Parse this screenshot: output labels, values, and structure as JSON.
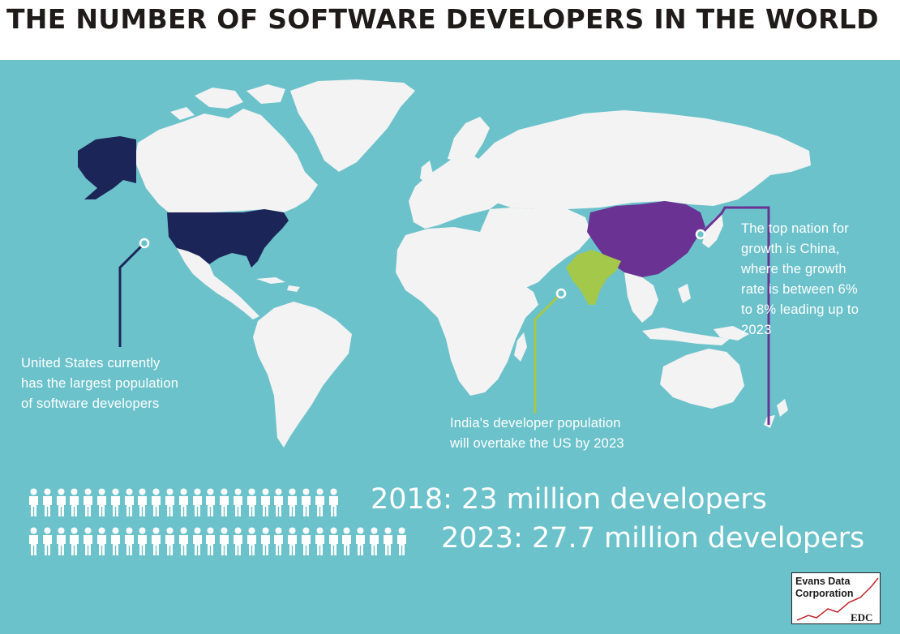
{
  "title": "THE NUMBER OF SOFTWARE DEVELOPERS IN THE WORLD",
  "colors": {
    "ocean": "#6cc2cb",
    "land": "#f3f3f3",
    "usa": "#1c2557",
    "china": "#6a3293",
    "india": "#a3c84a",
    "white": "#ffffff"
  },
  "callouts": {
    "usa": [
      "United States currently",
      "has the largest population",
      "of software developers"
    ],
    "china": [
      "The top nation for",
      "growth is China,",
      "where the growth",
      "rate is between 6%",
      "to 8% leading up to",
      "2023"
    ],
    "india": [
      "India's developer population",
      "will overtake the US by 2023"
    ]
  },
  "stats": [
    {
      "year": "2018",
      "text": "2018: 23 million developers",
      "value_millions": 23,
      "icons": 23
    },
    {
      "year": "2023",
      "text": "2023: 27.7 million developers",
      "value_millions": 27.7,
      "icons": 28
    }
  ],
  "logo": {
    "line1": "Evans Data",
    "line2": "Corporation",
    "mark": "EDC"
  }
}
